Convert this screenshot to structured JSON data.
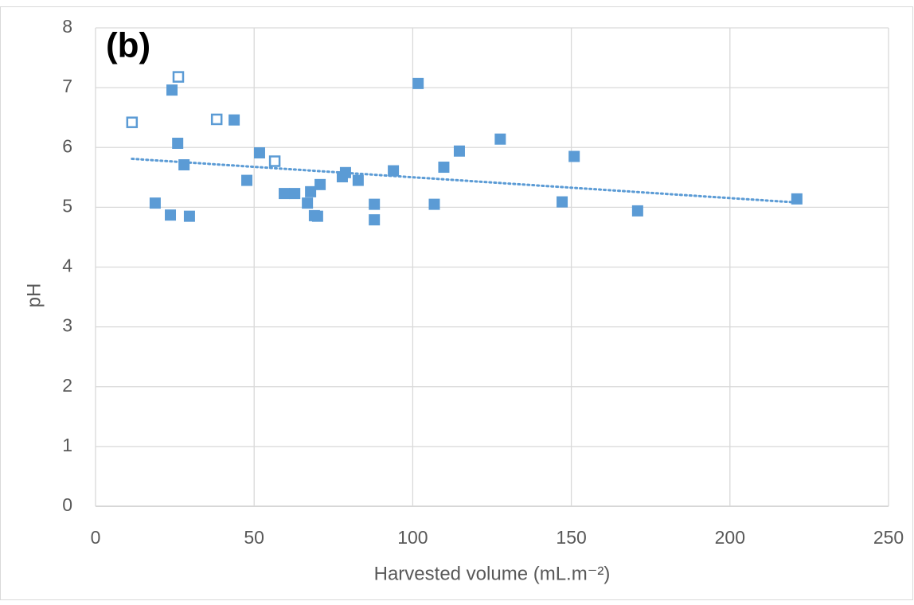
{
  "chart_data": {
    "type": "scatter",
    "annotation": "(b)",
    "x_label": "Harvested volume (mL.m⁻²)",
    "y_label": "pH",
    "xlim": [
      0,
      250
    ],
    "xticks": [
      0,
      50,
      100,
      150,
      200,
      250
    ],
    "ylim": [
      0,
      8
    ],
    "yticks": [
      0,
      1,
      2,
      3,
      4,
      5,
      6,
      7,
      8
    ],
    "grid": true,
    "series": [
      {
        "color": "#5b9bd5",
        "marker": "filled",
        "x": [
          18.8,
          24.1,
          23.6,
          25.9,
          27.9,
          29.6,
          43.7,
          47.7,
          51.7,
          59.5,
          62.8,
          66.8,
          67.8,
          69.0,
          70.0,
          70.8,
          77.8,
          78.8,
          82.8,
          87.9,
          87.9,
          93.9,
          101.7,
          106.8,
          109.8,
          114.7,
          127.6,
          147.1,
          150.9,
          170.9,
          221.1
        ],
        "values": [
          5.07,
          6.96,
          4.87,
          6.07,
          5.71,
          4.85,
          6.46,
          5.45,
          5.91,
          5.23,
          5.23,
          5.07,
          5.26,
          4.86,
          4.85,
          5.38,
          5.51,
          5.58,
          5.45,
          5.05,
          4.79,
          5.61,
          7.07,
          5.05,
          5.67,
          5.94,
          6.14,
          5.09,
          5.85,
          4.94,
          5.14
        ]
      },
      {
        "color": "#5b9bd5",
        "marker": "open",
        "x": [
          11.5,
          26.1,
          38.2,
          56.5
        ],
        "values": [
          6.42,
          7.18,
          6.47,
          5.77
        ]
      }
    ],
    "trendline": {
      "color": "#5b9bd5",
      "x": [
        11.5,
        221.1
      ],
      "values": [
        5.81,
        5.08
      ]
    }
  }
}
